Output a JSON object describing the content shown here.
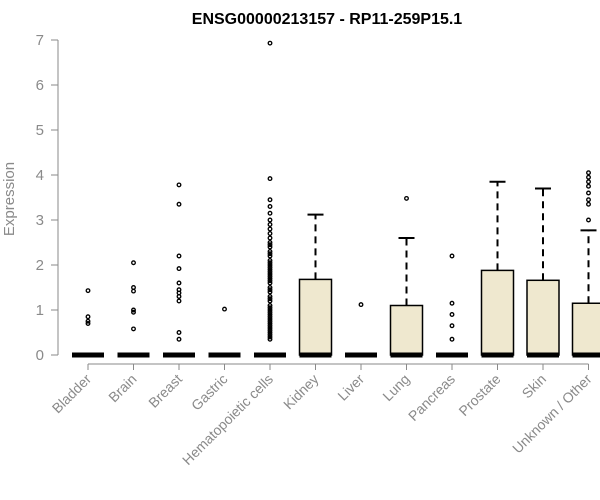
{
  "chart_data": {
    "type": "box",
    "title": "ENSG00000213157 - RP11-259P15.1",
    "ylabel": "Expression",
    "xlabel": "",
    "ylim": [
      0,
      7
    ],
    "yticks": [
      "0",
      "1",
      "2",
      "3",
      "4",
      "5",
      "6",
      "7"
    ],
    "grid": false,
    "box_fill": "#efe8cf",
    "categories": [
      "Bladder",
      "Brain",
      "Breast",
      "Gastric",
      "Hematopoietic cells",
      "Kidney",
      "Liver",
      "Lung",
      "Pancreas",
      "Prostate",
      "Skin",
      "Unknown / Other"
    ],
    "boxes": [
      {
        "category": "Bladder",
        "q1": 0,
        "median": 0,
        "q3": 0,
        "whisker_low": 0,
        "whisker_high": 0,
        "outliers": [
          1.43,
          0.85,
          0.75,
          0.7
        ]
      },
      {
        "category": "Brain",
        "q1": 0,
        "median": 0,
        "q3": 0,
        "whisker_low": 0,
        "whisker_high": 0,
        "outliers": [
          2.05,
          1.5,
          1.42,
          1.0,
          0.95,
          0.58
        ]
      },
      {
        "category": "Breast",
        "q1": 0,
        "median": 0,
        "q3": 0,
        "whisker_low": 0,
        "whisker_high": 0,
        "outliers": [
          3.78,
          3.35,
          2.2,
          1.92,
          1.6,
          1.45,
          1.38,
          1.3,
          1.2,
          0.5,
          0.35
        ]
      },
      {
        "category": "Gastric",
        "q1": 0,
        "median": 0,
        "q3": 0,
        "whisker_low": 0,
        "whisker_high": 0,
        "outliers": [
          1.02
        ]
      },
      {
        "category": "Hematopoietic cells",
        "q1": 0,
        "median": 0,
        "q3": 0,
        "whisker_low": 0,
        "whisker_high": 0,
        "outliers": [
          6.93,
          3.92,
          3.45,
          3.3,
          3.15,
          3.0,
          2.9,
          2.8,
          2.7,
          2.6,
          2.5,
          2.45,
          2.4,
          2.3,
          2.25,
          2.2,
          2.1,
          2.05,
          2.0,
          1.95,
          1.9,
          1.85,
          1.8,
          1.75,
          1.7,
          1.65,
          1.6,
          1.5,
          1.45,
          1.4,
          1.3,
          1.25,
          1.2,
          1.1,
          1.05,
          1.0,
          0.95,
          0.9,
          0.85,
          0.8,
          0.75,
          0.7,
          0.65,
          0.6,
          0.55,
          0.5,
          0.45,
          0.4,
          0.35
        ]
      },
      {
        "category": "Kidney",
        "q1": 0,
        "median": 0,
        "q3": 1.68,
        "whisker_low": 0,
        "whisker_high": 3.12,
        "outliers": []
      },
      {
        "category": "Liver",
        "q1": 0,
        "median": 0,
        "q3": 0,
        "whisker_low": 0,
        "whisker_high": 0,
        "outliers": [
          1.12
        ]
      },
      {
        "category": "Lung",
        "q1": 0,
        "median": 0,
        "q3": 1.1,
        "whisker_low": 0,
        "whisker_high": 2.6,
        "outliers": [
          3.48
        ]
      },
      {
        "category": "Pancreas",
        "q1": 0,
        "median": 0,
        "q3": 0,
        "whisker_low": 0,
        "whisker_high": 0,
        "outliers": [
          2.2,
          1.15,
          0.9,
          0.65,
          0.35
        ]
      },
      {
        "category": "Prostate",
        "q1": 0,
        "median": 0,
        "q3": 1.88,
        "whisker_low": 0,
        "whisker_high": 3.85,
        "outliers": []
      },
      {
        "category": "Skin",
        "q1": 0,
        "median": 0,
        "q3": 1.66,
        "whisker_low": 0,
        "whisker_high": 3.7,
        "outliers": []
      },
      {
        "category": "Unknown / Other",
        "q1": 0,
        "median": 0,
        "q3": 1.15,
        "whisker_low": 0,
        "whisker_high": 2.77,
        "outliers": [
          4.05,
          3.95,
          3.85,
          3.75,
          3.6,
          3.45,
          3.35,
          3.0
        ]
      }
    ]
  }
}
